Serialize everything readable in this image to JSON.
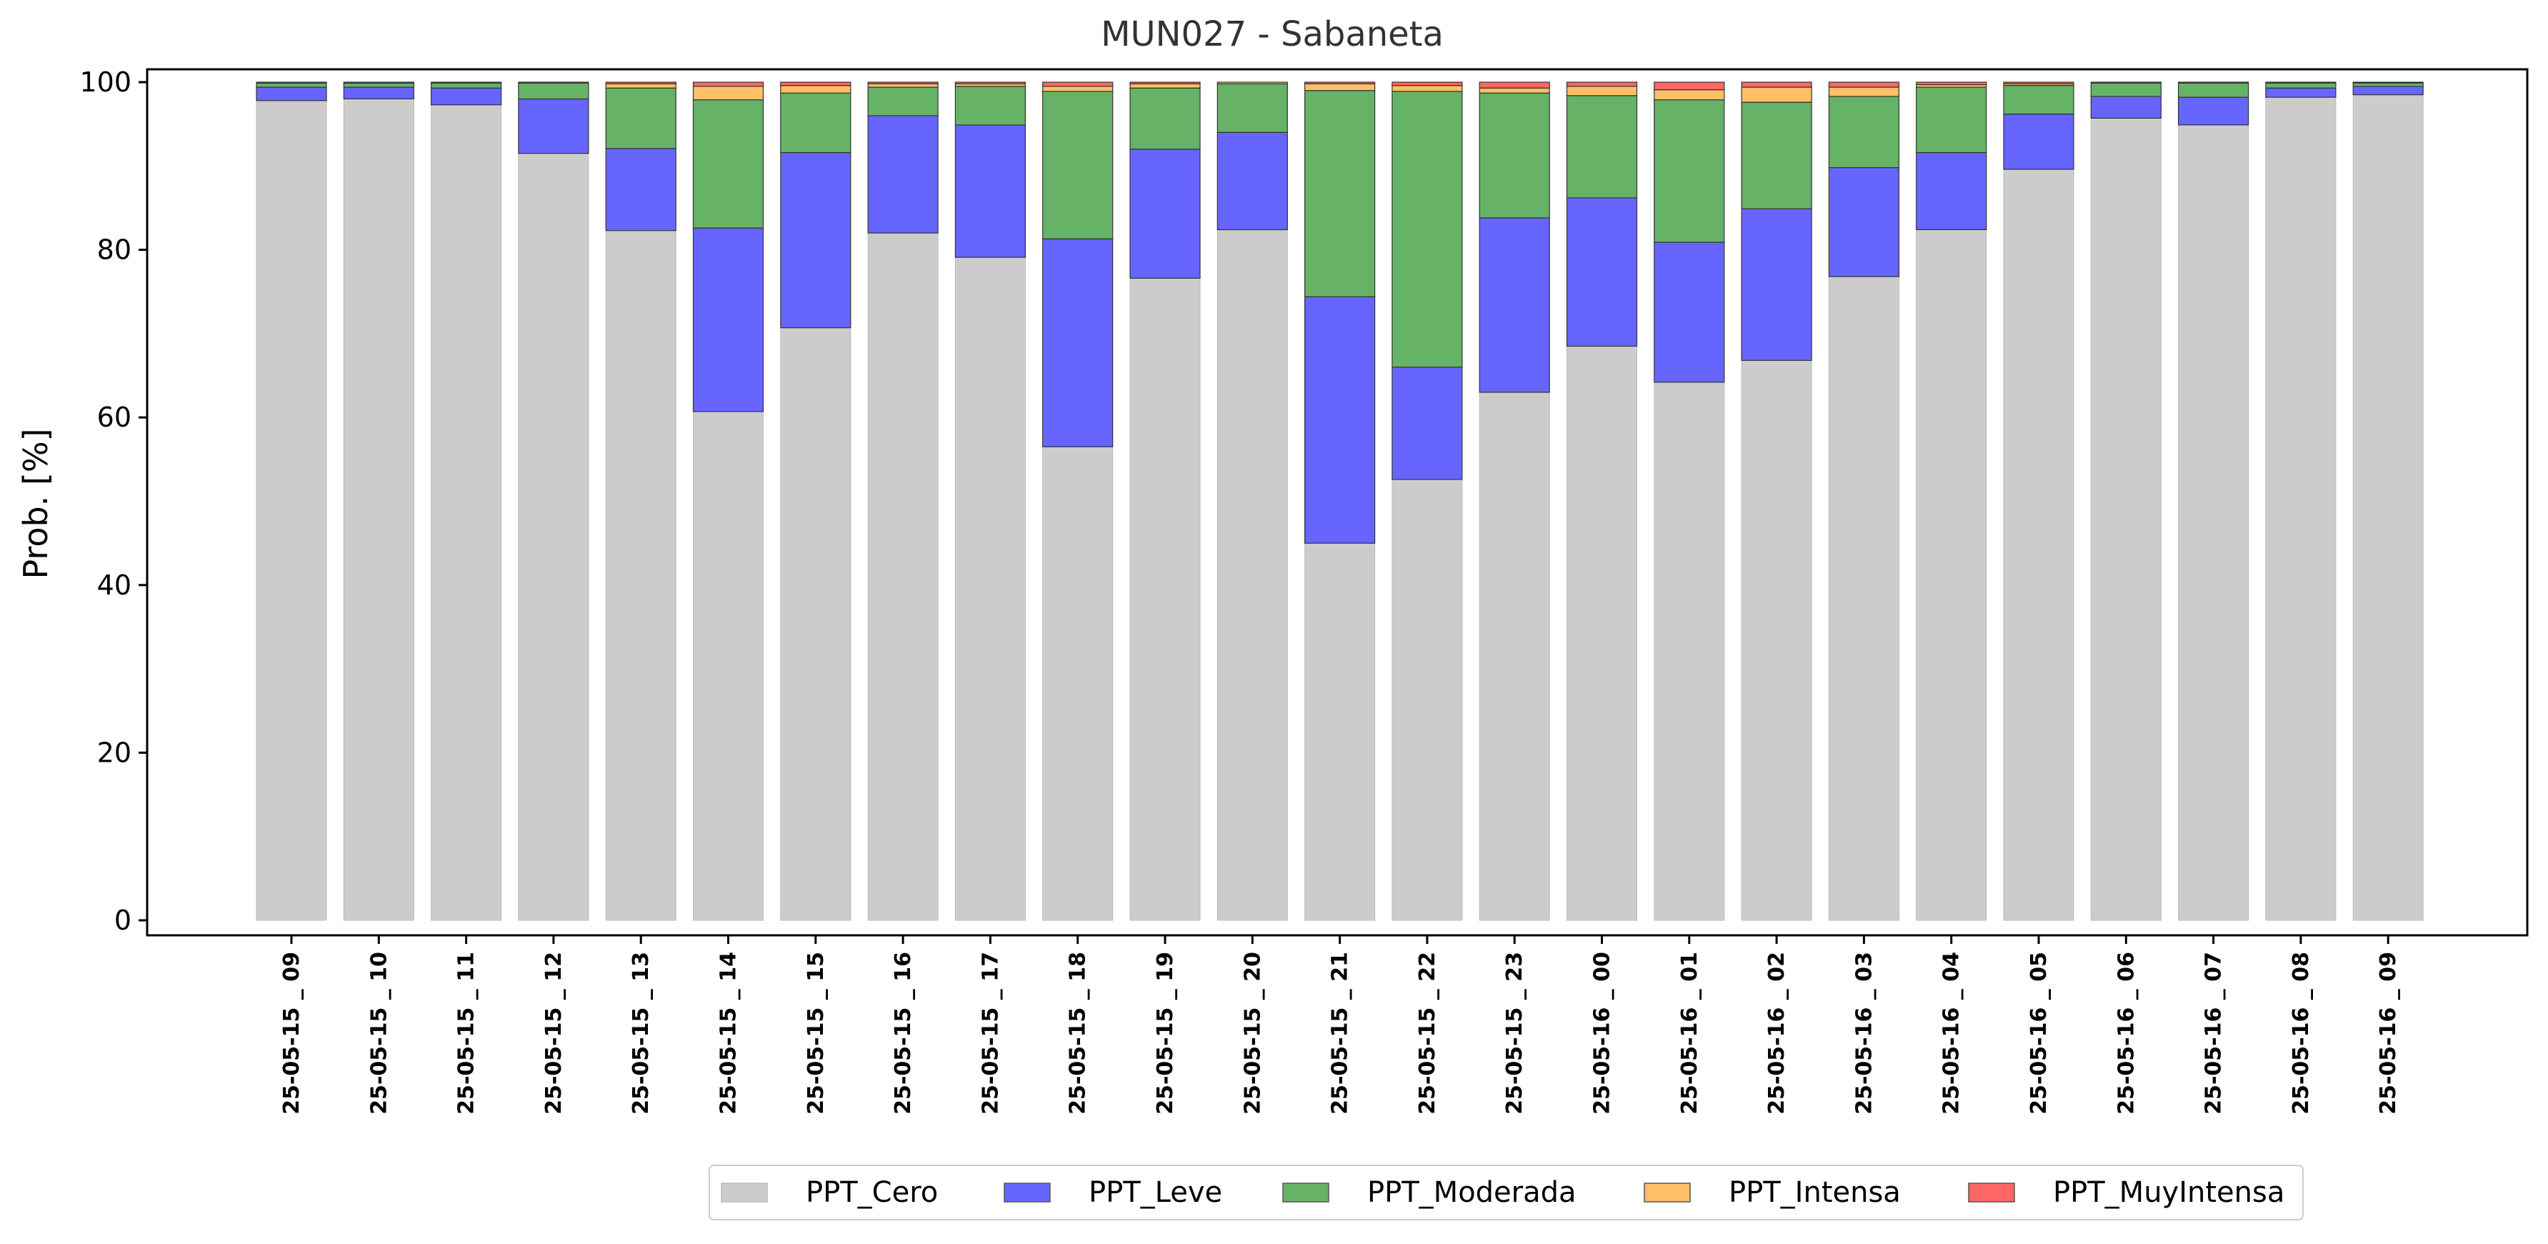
{
  "chart_data": {
    "type": "bar",
    "stacked": true,
    "title": "MUN027 - Sabaneta",
    "xlabel": "",
    "ylabel": "Prob. [%]",
    "ylim": [
      -3,
      102
    ],
    "yticks": [
      0,
      20,
      40,
      60,
      80,
      100
    ],
    "grid": false,
    "legend_position": "bottom-center",
    "categories": [
      "25-05-15 _ 09",
      "25-05-15 _ 10",
      "25-05-15 _ 11",
      "25-05-15 _ 12",
      "25-05-15 _ 13",
      "25-05-15 _ 14",
      "25-05-15 _ 15",
      "25-05-15 _ 16",
      "25-05-15 _ 17",
      "25-05-15 _ 18",
      "25-05-15 _ 19",
      "25-05-15 _ 20",
      "25-05-15 _ 21",
      "25-05-15 _ 22",
      "25-05-15 _ 23",
      "25-05-16 _ 00",
      "25-05-16 _ 01",
      "25-05-16 _ 02",
      "25-05-16 _ 03",
      "25-05-16 _ 04",
      "25-05-16 _ 05",
      "25-05-16 _ 06",
      "25-05-16 _ 07",
      "25-05-16 _ 08",
      "25-05-16 _ 09"
    ],
    "series": [
      {
        "name": "PPT_Cero",
        "color": "#cccccc",
        "values": [
          97.8,
          98,
          97.3,
          91.5,
          82.3,
          60.7,
          70.7,
          82,
          79.1,
          56.5,
          76.6,
          82.4,
          45,
          52.6,
          63,
          68.5,
          64.2,
          66.8,
          76.8,
          82.4,
          89.6,
          95.7,
          94.9,
          98.2,
          98.5
        ]
      },
      {
        "name": "PPT_Leve",
        "color": "#6666ff",
        "values": [
          1.6,
          1.4,
          2,
          6.5,
          9.8,
          21.9,
          20.9,
          14,
          15.8,
          24.8,
          15.4,
          11.6,
          29.4,
          13.4,
          20.8,
          17.7,
          16.7,
          18.1,
          13,
          9.2,
          6.6,
          2.6,
          3.3,
          1.1,
          1
        ]
      },
      {
        "name": "PPT_Moderada",
        "color": "#66b266",
        "values": [
          0.5,
          0.5,
          0.6,
          1.9,
          7.2,
          15.3,
          7.1,
          3.4,
          4.6,
          17.6,
          7.3,
          5.8,
          24.6,
          32.9,
          14.9,
          12.2,
          17,
          12.7,
          8.5,
          7.8,
          3.4,
          1.6,
          1.7,
          0.6,
          0.4
        ]
      },
      {
        "name": "PPT_Intensa",
        "color": "#ffbf66",
        "values": [
          0.1,
          0.1,
          0.1,
          0.1,
          0.5,
          1.6,
          0.9,
          0.4,
          0.3,
          0.6,
          0.5,
          0.2,
          0.8,
          0.7,
          0.6,
          1.1,
          1.2,
          1.8,
          1.1,
          0.3,
          0.2,
          0.1,
          0.1,
          0.1,
          0.1
        ]
      },
      {
        "name": "PPT_MuyIntensa",
        "color": "#ff6666",
        "values": [
          0,
          0,
          0,
          0,
          0.2,
          0.5,
          0.4,
          0.2,
          0.2,
          0.5,
          0.2,
          0,
          0.2,
          0.4,
          0.7,
          0.5,
          0.9,
          0.6,
          0.6,
          0.3,
          0.2,
          0,
          0,
          0,
          0
        ]
      }
    ]
  }
}
